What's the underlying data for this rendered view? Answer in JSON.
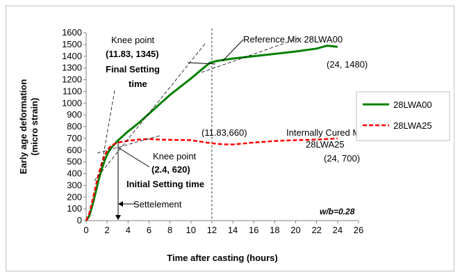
{
  "chart_data": {
    "type": "line",
    "xlabel": "Time after casting (hours)",
    "ylabel_line1": "Early age deformation",
    "ylabel_line2": "(micro strain)",
    "xlim": [
      0,
      26
    ],
    "ylim": [
      0,
      1600
    ],
    "x_ticks": [
      0,
      2,
      4,
      6,
      8,
      10,
      12,
      14,
      16,
      18,
      20,
      22,
      24,
      26
    ],
    "y_ticks": [
      0,
      100,
      200,
      300,
      400,
      500,
      600,
      700,
      800,
      900,
      1000,
      1100,
      1200,
      1300,
      1400,
      1500,
      1600
    ],
    "legend_position": "right",
    "series": [
      {
        "name": "28LWA00",
        "color": "#008000",
        "style": "solid",
        "points": [
          [
            0,
            0
          ],
          [
            0.3,
            40
          ],
          [
            0.6,
            130
          ],
          [
            0.9,
            240
          ],
          [
            1.2,
            350
          ],
          [
            1.5,
            440
          ],
          [
            1.8,
            520
          ],
          [
            2.1,
            580
          ],
          [
            2.4,
            620
          ],
          [
            3,
            680
          ],
          [
            4,
            760
          ],
          [
            5,
            830
          ],
          [
            6,
            910
          ],
          [
            7,
            990
          ],
          [
            8,
            1070
          ],
          [
            9,
            1140
          ],
          [
            10,
            1210
          ],
          [
            11,
            1285
          ],
          [
            11.83,
            1345
          ],
          [
            12.5,
            1360
          ],
          [
            14,
            1380
          ],
          [
            16,
            1400
          ],
          [
            18,
            1420
          ],
          [
            20,
            1440
          ],
          [
            22,
            1465
          ],
          [
            23,
            1490
          ],
          [
            24,
            1480
          ]
        ]
      },
      {
        "name": "28LWA25",
        "color": "#ff0000",
        "style": "dashed",
        "points": [
          [
            0,
            0
          ],
          [
            0.3,
            60
          ],
          [
            0.6,
            170
          ],
          [
            0.9,
            290
          ],
          [
            1.2,
            400
          ],
          [
            1.5,
            490
          ],
          [
            1.8,
            560
          ],
          [
            2.1,
            610
          ],
          [
            2.4,
            640
          ],
          [
            3,
            665
          ],
          [
            4,
            680
          ],
          [
            5,
            690
          ],
          [
            6,
            695
          ],
          [
            7,
            690
          ],
          [
            8,
            688
          ],
          [
            10,
            685
          ],
          [
            11.83,
            660
          ],
          [
            13,
            650
          ],
          [
            14,
            648
          ],
          [
            16,
            665
          ],
          [
            18,
            678
          ],
          [
            20,
            685
          ],
          [
            22,
            690
          ],
          [
            24,
            700
          ]
        ]
      }
    ],
    "annotations": {
      "knee_top_line1": "Knee point",
      "knee_top_line2": "(11.83, 1345)",
      "final_setting_line1": "Final Setting",
      "final_setting_line2": "time",
      "reference_mix": "Reference Mix 28LWA00",
      "point_24_1480": "(24, 1480)",
      "point_11_660": "(11.83,660)",
      "internally_cured_line1": "Internally Cured Mix",
      "internally_cured_line2": "28LWA25",
      "point_24_700": "(24, 700)",
      "knee_bottom_line1": "Knee point",
      "knee_bottom_line2": "(2.4, 620)",
      "initial_setting": "Initial Setting time",
      "settlement": "Settelement",
      "wb_ratio": "w/b=0.28"
    },
    "reference_line_x": 12
  }
}
